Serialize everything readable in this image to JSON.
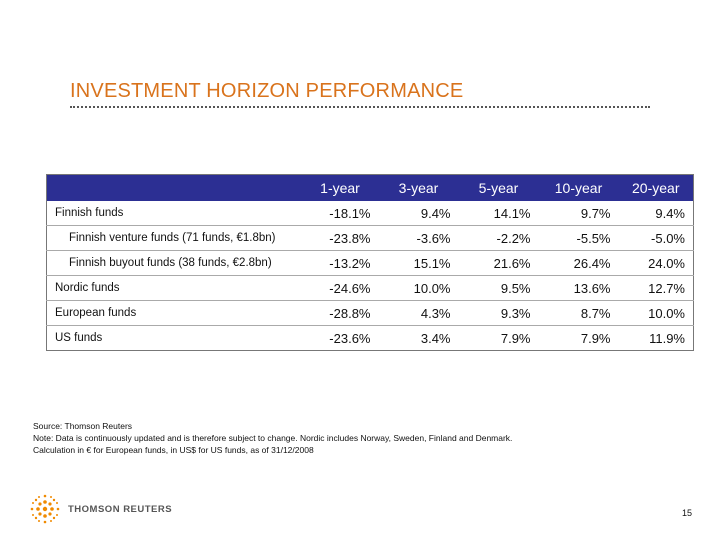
{
  "slide": {
    "title": "INVESTMENT HORIZON PERFORMANCE",
    "page_number": "15"
  },
  "table": {
    "headers": [
      "",
      "1-year",
      "3-year",
      "5-year",
      "10-year",
      "20-year"
    ],
    "rows": [
      {
        "label": "Finnish funds",
        "values": [
          "-18.1%",
          "9.4%",
          "14.1%",
          "9.7%",
          "9.4%"
        ]
      },
      {
        "label": "Finnish venture funds (71 funds, €1.8bn)",
        "values": [
          "-23.8%",
          "-3.6%",
          "-2.2%",
          "-5.5%",
          "-5.0%"
        ]
      },
      {
        "label": "Finnish buyout funds (38 funds, €2.8bn)",
        "values": [
          "-13.2%",
          "15.1%",
          "21.6%",
          "26.4%",
          "24.0%"
        ]
      },
      {
        "label": "Nordic funds",
        "values": [
          "-24.6%",
          "10.0%",
          "9.5%",
          "13.6%",
          "12.7%"
        ]
      },
      {
        "label": "European funds",
        "values": [
          "-28.8%",
          "4.3%",
          "9.3%",
          "8.7%",
          "10.0%"
        ]
      },
      {
        "label": "US funds",
        "values": [
          "-23.6%",
          "3.4%",
          "7.9%",
          "7.9%",
          "11.9%"
        ]
      }
    ]
  },
  "notes": {
    "source": "Source: Thomson Reuters",
    "note": "Note: Data is continuously updated and is therefore subject to change. Nordic includes Norway, Sweden, Finland and Denmark.",
    "calculation": "Calculation in € for European funds, in US$ for US funds, as of 31/12/2008"
  },
  "logo": {
    "wordmark": "THOMSON REUTERS",
    "icon": "thomson-reuters-dots-logo",
    "color": "#f08a00"
  },
  "colors": {
    "title": "#d9731c",
    "header_bg": "#2c2f93",
    "header_text": "#ffffff"
  }
}
